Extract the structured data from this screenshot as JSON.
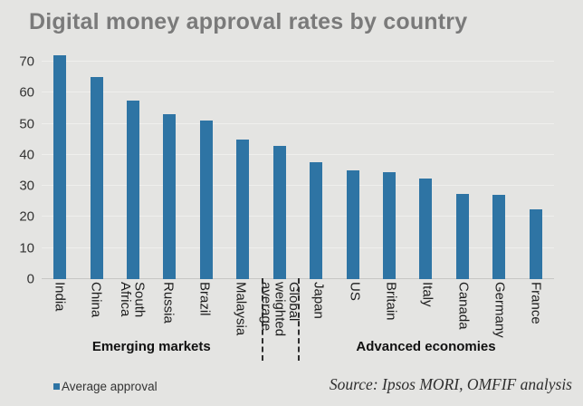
{
  "title": "Digital money approval rates by country",
  "legend": {
    "label": "Average approval"
  },
  "source": "Source: Ipsos MORI, OMFIF analysis",
  "colors": {
    "bar": "#2e74a4",
    "background": "#e4e4e2",
    "title_text": "#7a7a7a",
    "gridline": "#efefed",
    "axis_line": "#c6c6c4"
  },
  "chart_data": {
    "type": "bar",
    "title": "Digital money approval rates by country",
    "categories": [
      "India",
      "China",
      "South Africa",
      "Russia",
      "Brazil",
      "Malaysia",
      "Global weighted average",
      "Japan",
      "US",
      "Britain",
      "Italy",
      "Canada",
      "Germany",
      "France"
    ],
    "values": [
      72,
      65,
      57.5,
      53,
      51,
      45,
      43,
      37.5,
      35,
      34.5,
      32.5,
      27.5,
      27,
      22.5
    ],
    "series_name": "Average approval",
    "xlabel": "",
    "ylabel": "",
    "ylim": [
      0,
      70
    ],
    "yticks": [
      0,
      10,
      20,
      30,
      40,
      50,
      60,
      70
    ],
    "grid": true,
    "legend_position": "bottom-left",
    "groups": [
      {
        "label": "Emerging markets",
        "from": 0,
        "to": 5
      },
      {
        "label": "Advanced economies",
        "from": 7,
        "to": 13
      }
    ],
    "separator_slot_index": 6
  }
}
